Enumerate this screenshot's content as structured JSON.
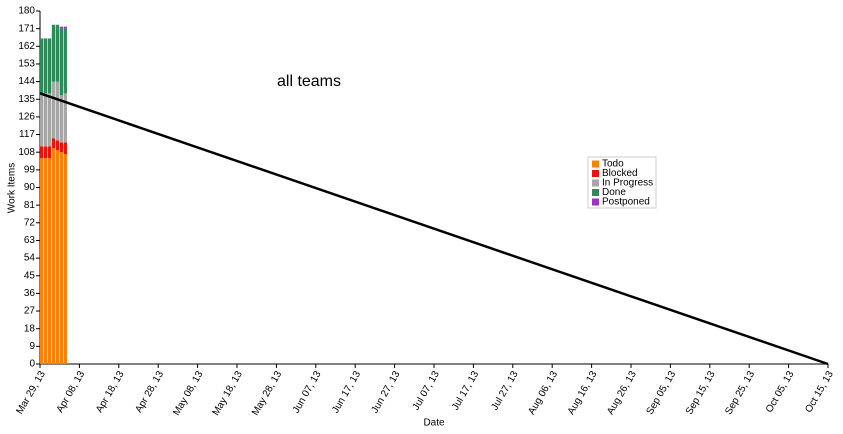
{
  "chart_data": {
    "type": "bar",
    "stacked": true,
    "title": "all teams",
    "xlabel": "Date",
    "ylabel": "Work Items",
    "x": [
      "2013-03-29",
      "2013-03-30",
      "2013-03-31",
      "2013-04-01",
      "2013-04-02",
      "2013-04-03",
      "2013-04-04"
    ],
    "series": [
      {
        "name": "Todo",
        "color": "#f7830b",
        "values": [
          105,
          105,
          105,
          110,
          109,
          108,
          107
        ]
      },
      {
        "name": "Blocked",
        "color": "#e8140c",
        "values": [
          6,
          6,
          6,
          5,
          5,
          5,
          6
        ]
      },
      {
        "name": "In Progress",
        "color": "#a6a6a6",
        "values": [
          27,
          27,
          27,
          29,
          30,
          24,
          25
        ]
      },
      {
        "name": "Done",
        "color": "#2e8b57",
        "values": [
          28,
          28,
          28,
          29,
          29,
          34,
          33
        ]
      },
      {
        "name": "Postponed",
        "color": "#9933cc",
        "values": [
          0,
          0,
          0,
          0,
          0,
          1,
          1
        ]
      }
    ],
    "line": {
      "color": "#000000",
      "x": [
        "2013-03-29",
        "2013-10-15"
      ],
      "values": [
        138,
        0
      ]
    },
    "xlim": [
      "2013-03-29",
      "2013-10-15"
    ],
    "xticks": [
      {
        "value": "2013-03-29",
        "label": "Mar 29, 13"
      },
      {
        "value": "2013-04-08",
        "label": "Apr 08, 13"
      },
      {
        "value": "2013-04-18",
        "label": "Apr 18, 13"
      },
      {
        "value": "2013-04-28",
        "label": "Apr 28, 13"
      },
      {
        "value": "2013-05-08",
        "label": "May 08, 13"
      },
      {
        "value": "2013-05-18",
        "label": "May 18, 13"
      },
      {
        "value": "2013-05-28",
        "label": "May 28, 13"
      },
      {
        "value": "2013-06-07",
        "label": "Jun 07, 13"
      },
      {
        "value": "2013-06-17",
        "label": "Jun 17, 13"
      },
      {
        "value": "2013-06-27",
        "label": "Jun 27, 13"
      },
      {
        "value": "2013-07-07",
        "label": "Jul 07, 13"
      },
      {
        "value": "2013-07-17",
        "label": "Jul 17, 13"
      },
      {
        "value": "2013-07-27",
        "label": "Jul 27, 13"
      },
      {
        "value": "2013-08-06",
        "label": "Aug 06, 13"
      },
      {
        "value": "2013-08-16",
        "label": "Aug 16, 13"
      },
      {
        "value": "2013-08-26",
        "label": "Aug 26, 13"
      },
      {
        "value": "2013-09-05",
        "label": "Sep 05, 13"
      },
      {
        "value": "2013-09-15",
        "label": "Sep 15, 13"
      },
      {
        "value": "2013-09-25",
        "label": "Sep 25, 13"
      },
      {
        "value": "2013-10-05",
        "label": "Oct 05, 13"
      },
      {
        "value": "2013-10-15",
        "label": "Oct 15, 13"
      }
    ],
    "ylim": [
      0,
      180
    ],
    "yticks": [
      0,
      9,
      18,
      27,
      36,
      45,
      54,
      63,
      72,
      81,
      90,
      99,
      108,
      117,
      126,
      135,
      144,
      153,
      162,
      171,
      180
    ],
    "legend": "right"
  }
}
